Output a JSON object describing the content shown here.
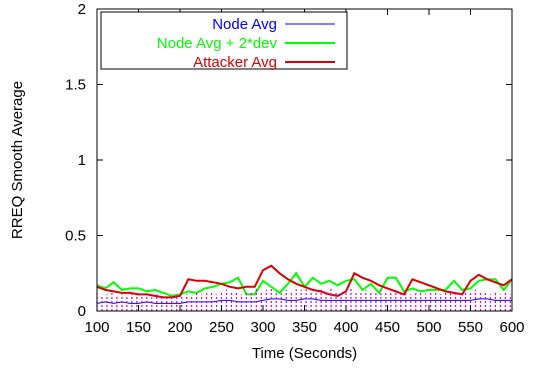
{
  "chart_data": {
    "type": "line",
    "xlabel": "Time (Seconds)",
    "ylabel": "RREQ Smooth Average",
    "xlim": [
      100,
      600
    ],
    "ylim": [
      0,
      2
    ],
    "x_ticks": [
      "100",
      "150",
      "200",
      "250",
      "300",
      "350",
      "400",
      "450",
      "500",
      "550",
      "600"
    ],
    "y_ticks": [
      "0",
      "0.5",
      "1",
      "1.5",
      "2"
    ],
    "x_tick_values": [
      100,
      150,
      200,
      250,
      300,
      350,
      400,
      450,
      500,
      550,
      600
    ],
    "y_tick_values": [
      0,
      0.5,
      1,
      1.5,
      2
    ],
    "grid": false,
    "legend_position": "top-left",
    "series": [
      {
        "name": "Node Avg",
        "color": "#0000ff",
        "x": [
          100,
          110,
          120,
          130,
          140,
          150,
          160,
          170,
          180,
          190,
          200,
          210,
          220,
          230,
          240,
          250,
          260,
          270,
          280,
          290,
          300,
          310,
          320,
          330,
          340,
          350,
          360,
          370,
          380,
          390,
          400,
          410,
          420,
          430,
          440,
          450,
          460,
          470,
          480,
          490,
          500,
          510,
          520,
          530,
          540,
          550,
          560,
          570,
          580,
          590,
          600
        ],
        "y": [
          0.05,
          0.06,
          0.05,
          0.06,
          0.05,
          0.05,
          0.06,
          0.05,
          0.05,
          0.05,
          0.05,
          0.06,
          0.06,
          0.06,
          0.06,
          0.07,
          0.07,
          0.06,
          0.06,
          0.06,
          0.07,
          0.08,
          0.08,
          0.07,
          0.07,
          0.08,
          0.08,
          0.07,
          0.07,
          0.07,
          0.07,
          0.07,
          0.07,
          0.07,
          0.07,
          0.07,
          0.07,
          0.07,
          0.07,
          0.07,
          0.07,
          0.07,
          0.07,
          0.07,
          0.07,
          0.07,
          0.08,
          0.08,
          0.07,
          0.07,
          0.07
        ]
      },
      {
        "name": "Node Avg + 2*dev",
        "color": "#00ff00",
        "x": [
          100,
          110,
          120,
          130,
          140,
          150,
          160,
          170,
          180,
          190,
          200,
          210,
          220,
          230,
          240,
          250,
          260,
          270,
          280,
          290,
          300,
          310,
          320,
          330,
          340,
          350,
          360,
          370,
          380,
          390,
          400,
          410,
          420,
          430,
          440,
          450,
          460,
          470,
          480,
          490,
          500,
          510,
          520,
          530,
          540,
          550,
          560,
          570,
          580,
          590,
          600
        ],
        "y": [
          0.17,
          0.15,
          0.19,
          0.14,
          0.15,
          0.15,
          0.13,
          0.14,
          0.12,
          0.1,
          0.11,
          0.13,
          0.12,
          0.15,
          0.16,
          0.18,
          0.19,
          0.22,
          0.11,
          0.11,
          0.2,
          0.16,
          0.12,
          0.18,
          0.25,
          0.16,
          0.22,
          0.18,
          0.2,
          0.17,
          0.2,
          0.21,
          0.14,
          0.18,
          0.12,
          0.22,
          0.22,
          0.13,
          0.15,
          0.13,
          0.14,
          0.14,
          0.14,
          0.2,
          0.14,
          0.15,
          0.2,
          0.21,
          0.21,
          0.14,
          0.21
        ]
      },
      {
        "name": "Attacker Avg",
        "color": "#dd0000",
        "x": [
          100,
          110,
          120,
          130,
          140,
          150,
          160,
          170,
          180,
          190,
          200,
          210,
          220,
          230,
          240,
          250,
          260,
          270,
          280,
          290,
          300,
          310,
          320,
          330,
          340,
          350,
          360,
          370,
          380,
          390,
          400,
          410,
          420,
          430,
          440,
          450,
          460,
          470,
          480,
          490,
          500,
          510,
          520,
          530,
          540,
          550,
          560,
          570,
          580,
          590,
          600
        ],
        "y": [
          0.16,
          0.14,
          0.13,
          0.12,
          0.12,
          0.11,
          0.11,
          0.1,
          0.09,
          0.09,
          0.1,
          0.21,
          0.2,
          0.2,
          0.19,
          0.18,
          0.16,
          0.15,
          0.16,
          0.16,
          0.27,
          0.3,
          0.25,
          0.21,
          0.18,
          0.16,
          0.14,
          0.13,
          0.11,
          0.1,
          0.13,
          0.25,
          0.22,
          0.2,
          0.17,
          0.15,
          0.13,
          0.11,
          0.21,
          0.19,
          0.17,
          0.15,
          0.13,
          0.12,
          0.11,
          0.2,
          0.24,
          0.21,
          0.19,
          0.17,
          0.21
        ]
      },
      {
        "name": "",
        "color": "#dd00dd",
        "style": "impulses",
        "x": [
          100,
          106,
          112,
          118,
          124,
          130,
          136,
          142,
          148,
          154,
          160,
          166,
          172,
          178,
          184,
          190,
          196,
          202,
          208,
          214,
          220,
          226,
          232,
          238,
          244,
          250,
          256,
          262,
          268,
          274,
          280,
          286,
          292,
          298,
          304,
          310,
          316,
          322,
          328,
          334,
          340,
          346,
          352,
          358,
          364,
          370,
          376,
          382,
          388,
          394,
          400,
          406,
          412,
          418,
          424,
          430,
          436,
          442,
          448,
          454,
          460,
          466,
          472,
          478,
          484,
          490,
          496,
          502,
          508,
          514,
          520,
          526,
          532,
          538,
          544,
          550,
          556,
          562,
          568,
          574,
          580,
          586,
          592,
          598
        ],
        "y": [
          0.12,
          0.1,
          0.11,
          0.12,
          0.1,
          0.11,
          0.1,
          0.12,
          0.1,
          0.11,
          0.1,
          0.09,
          0.11,
          0.1,
          0.09,
          0.1,
          0.09,
          0.1,
          0.11,
          0.1,
          0.12,
          0.11,
          0.13,
          0.12,
          0.11,
          0.13,
          0.14,
          0.12,
          0.13,
          0.11,
          0.13,
          0.12,
          0.15,
          0.13,
          0.14,
          0.15,
          0.13,
          0.12,
          0.14,
          0.13,
          0.15,
          0.14,
          0.16,
          0.13,
          0.12,
          0.14,
          0.13,
          0.15,
          0.12,
          0.13,
          0.14,
          0.15,
          0.13,
          0.12,
          0.14,
          0.13,
          0.12,
          0.14,
          0.13,
          0.12,
          0.14,
          0.12,
          0.13,
          0.11,
          0.12,
          0.13,
          0.11,
          0.12,
          0.13,
          0.11,
          0.12,
          0.13,
          0.11,
          0.12,
          0.13,
          0.12,
          0.14,
          0.12,
          0.13,
          0.11,
          0.12,
          0.11,
          0.12,
          0.11
        ]
      }
    ]
  }
}
